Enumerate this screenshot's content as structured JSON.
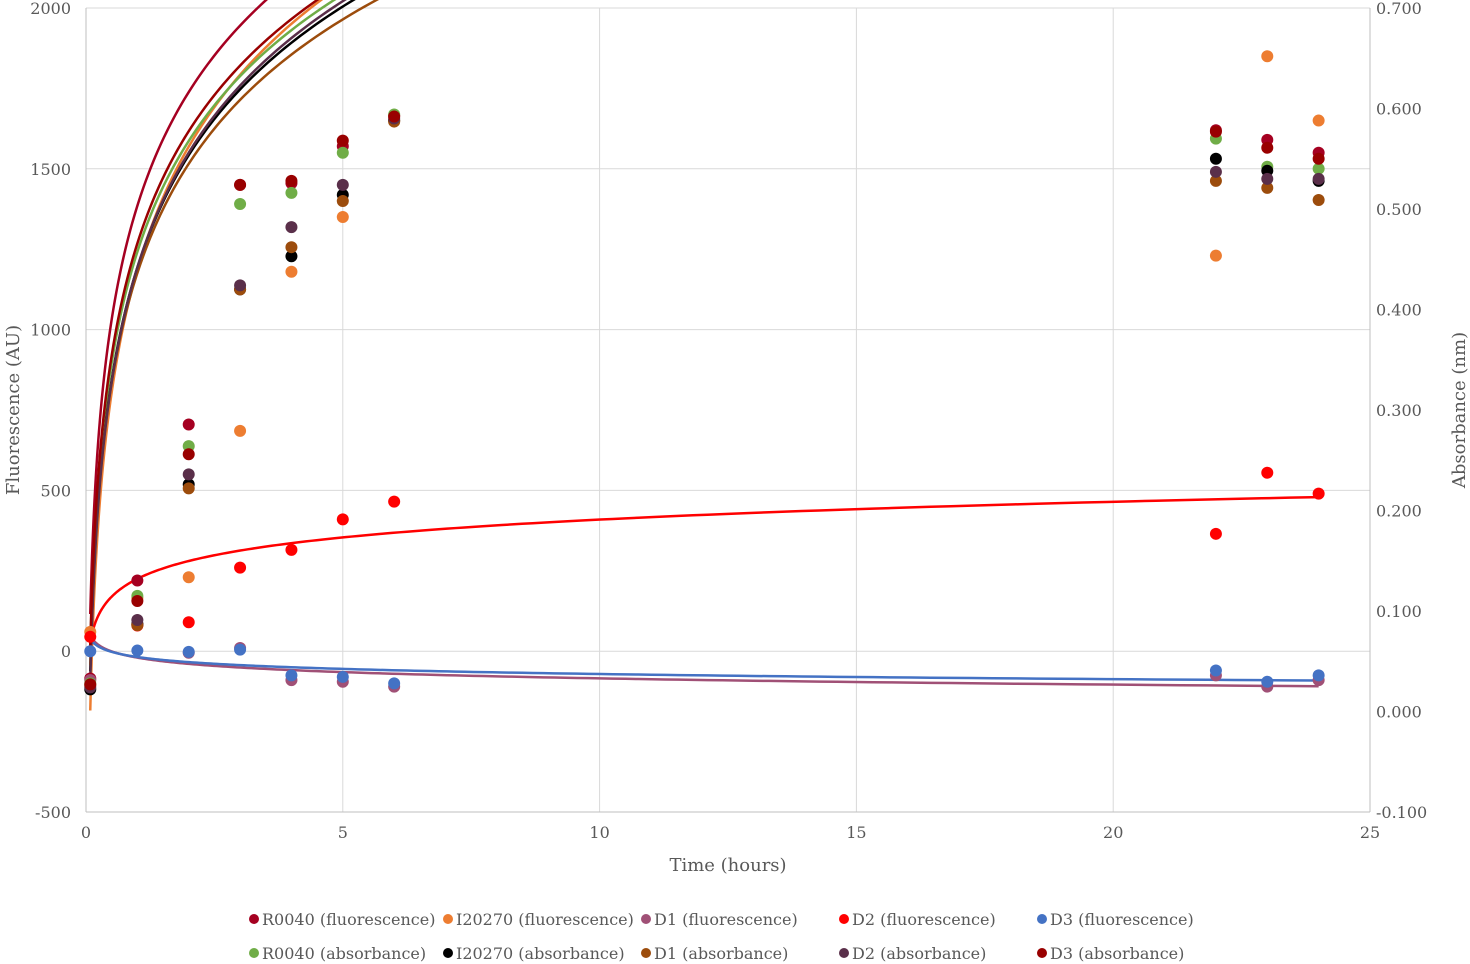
{
  "chart_data": {
    "type": "scatter",
    "title": "",
    "xlabel": "Time (hours)",
    "ylabel": "Fluorescence (AU)",
    "y2label": "Absorbance (nm)",
    "xlim": [
      0,
      25
    ],
    "ylim": [
      -500,
      2000
    ],
    "y2lim": [
      -0.1,
      0.7
    ],
    "xticks": [
      "0",
      "5",
      "10",
      "15",
      "20",
      "25"
    ],
    "yticks": [
      "-500",
      "0",
      "500",
      "1000",
      "1500",
      "2000"
    ],
    "y2ticks": [
      "-0.100",
      "0.000",
      "0.100",
      "0.200",
      "0.300",
      "0.400",
      "0.500",
      "0.600",
      "0.700"
    ],
    "grid": true,
    "legend_position": "bottom",
    "x": [
      0.083,
      1,
      2,
      3,
      4,
      5,
      6,
      22,
      23,
      24
    ],
    "series": [
      {
        "name": "R0040 (fluorescence)",
        "axis": "left",
        "color": "#a50021",
        "values": [
          -85,
          220,
          705,
          1450,
          1455,
          1570,
          1665,
          1620,
          1590,
          1550
        ],
        "trend": {
          "a": 1385,
          "b": 510
        }
      },
      {
        "name": "I20270 (fluorescence)",
        "axis": "left",
        "color": "#ed7d31",
        "values": [
          60,
          165,
          230,
          685,
          1180,
          1350,
          1650,
          1230,
          1850,
          1650
        ],
        "trend": {
          "a": 1187,
          "b": 551
        }
      },
      {
        "name": "D1 (fluorescence)",
        "axis": "left",
        "color": "#a05076",
        "values": [
          -90,
          85,
          -5,
          10,
          -90,
          -95,
          -110,
          -75,
          -110,
          -90
        ],
        "trend": {
          "a": -20,
          "b": -28
        }
      },
      {
        "name": "D2 (fluorescence)",
        "axis": "left",
        "color": "#ff0000",
        "values": [
          45,
          80,
          90,
          260,
          315,
          410,
          465,
          365,
          555,
          490
        ],
        "trend": {
          "a": 225,
          "b": 80
        }
      },
      {
        "name": "D3 (fluorescence)",
        "axis": "left",
        "color": "#4472c4",
        "values": [
          0,
          2,
          -2,
          5,
          -75,
          -80,
          -100,
          -60,
          -95,
          -75
        ],
        "trend": {
          "a": -18,
          "b": -23
        }
      },
      {
        "name": "R0040 (absorbance)",
        "axis": "right",
        "color": "#70ad47",
        "values": [
          0.028,
          0.115,
          0.264,
          0.505,
          0.516,
          0.556,
          0.594,
          0.57,
          0.542,
          0.54
        ],
        "trend": {
          "a": 0.4574,
          "b": 0.1591
        }
      },
      {
        "name": "I20270 (absorbance)",
        "axis": "right",
        "color": "#000000",
        "values": [
          0.022,
          0.087,
          0.226,
          0.42,
          0.453,
          0.514,
          0.588,
          0.55,
          0.538,
          0.528
        ],
        "trend": {
          "a": 0.4417,
          "b": 0.1614
        }
      },
      {
        "name": "D1 (absorbance)",
        "axis": "right",
        "color": "#9c4c0c",
        "values": [
          0.026,
          0.086,
          0.222,
          0.42,
          0.462,
          0.508,
          0.587,
          0.528,
          0.521,
          0.509
        ],
        "trend": {
          "a": 0.4363,
          "b": 0.1568
        }
      },
      {
        "name": "D2 (absorbance)",
        "axis": "right",
        "color": "#5a2f4a",
        "values": [
          0.024,
          0.091,
          0.236,
          0.424,
          0.482,
          0.524,
          0.59,
          0.537,
          0.53,
          0.53
        ],
        "trend": {
          "a": 0.4419,
          "b": 0.1646
        }
      },
      {
        "name": "D3 (absorbance)",
        "axis": "right",
        "color": "#990000",
        "values": [
          0.027,
          0.11,
          0.256,
          0.524,
          0.528,
          0.568,
          0.592,
          0.577,
          0.561,
          0.55
        ],
        "trend": {
          "a": 0.4658,
          "b": 0.161
        }
      }
    ]
  }
}
